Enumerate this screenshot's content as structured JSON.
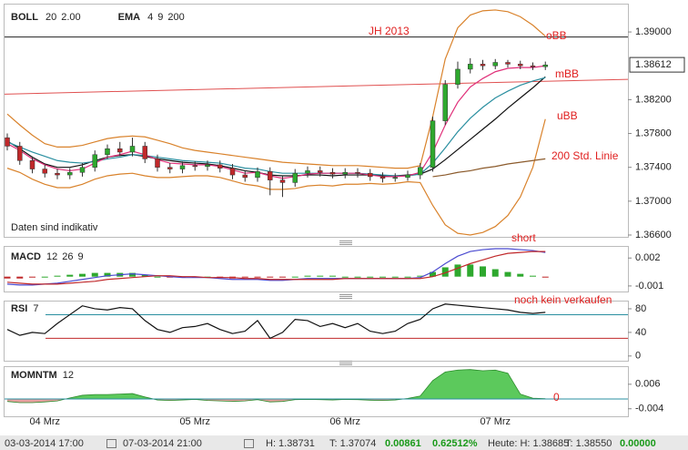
{
  "chart_data": [
    {
      "type": "candlestick",
      "indicators": [
        {
          "name": "BOLL",
          "params": [
            "20",
            "2.00"
          ],
          "param_colors": [
            "#d9822b",
            "#d9822b"
          ]
        },
        {
          "name": "EMA",
          "params": [
            "4",
            "9",
            "200"
          ],
          "param_colors": [
            "#e0307a",
            "#2a8fa0",
            "#8b5a2b"
          ]
        }
      ],
      "categories": [
        null,
        null,
        null,
        "04 Mrz",
        null,
        null,
        null,
        null,
        null,
        null,
        null,
        null,
        null,
        null,
        null,
        "05 Mrz",
        null,
        null,
        null,
        null,
        null,
        null,
        null,
        null,
        null,
        null,
        null,
        "06 Mrz",
        null,
        null,
        null,
        null,
        null,
        null,
        null,
        null,
        null,
        null,
        null,
        "07 Mrz",
        null,
        null,
        null,
        null
      ],
      "open": [
        1.3775,
        1.3765,
        1.3748,
        1.3738,
        1.3733,
        1.3731,
        1.3734,
        1.374,
        1.3755,
        1.3762,
        1.3758,
        1.3765,
        1.375,
        1.374,
        1.3738,
        1.3742,
        1.3741,
        1.3743,
        1.3739,
        1.3731,
        1.3728,
        1.3735,
        1.3725,
        1.3722,
        1.3733,
        1.3736,
        1.3734,
        1.3732,
        1.3734,
        1.3733,
        1.3729,
        1.3727,
        1.3728,
        1.3731,
        1.374,
        1.3795,
        1.3838,
        1.3856,
        1.3862,
        1.386,
        1.3864,
        1.3862,
        1.386,
        1.3859
      ],
      "high": [
        1.378,
        1.377,
        1.3753,
        1.3743,
        1.3738,
        1.3739,
        1.3745,
        1.376,
        1.3767,
        1.377,
        1.3775,
        1.377,
        1.3755,
        1.3745,
        1.3747,
        1.3747,
        1.3748,
        1.3748,
        1.3744,
        1.3736,
        1.374,
        1.374,
        1.373,
        1.3738,
        1.3741,
        1.3741,
        1.3739,
        1.3739,
        1.3739,
        1.3738,
        1.3734,
        1.3733,
        1.3736,
        1.3745,
        1.38,
        1.3843,
        1.3865,
        1.3869,
        1.3867,
        1.3868,
        1.3867,
        1.3866,
        1.3864,
        1.3865
      ],
      "low": [
        1.376,
        1.3743,
        1.3733,
        1.3728,
        1.3726,
        1.3726,
        1.3729,
        1.3735,
        1.375,
        1.3753,
        1.3753,
        1.3745,
        1.3735,
        1.3733,
        1.3733,
        1.3736,
        1.3736,
        1.3734,
        1.3726,
        1.3723,
        1.3723,
        1.3707,
        1.3705,
        1.3717,
        1.3728,
        1.3729,
        1.3727,
        1.3727,
        1.3728,
        1.3724,
        1.3722,
        1.3723,
        1.3724,
        1.3726,
        1.3735,
        1.379,
        1.3833,
        1.3851,
        1.3855,
        1.3856,
        1.3858,
        1.3856,
        1.3855,
        1.3855
      ],
      "close": [
        1.3765,
        1.3748,
        1.3738,
        1.3733,
        1.3731,
        1.3734,
        1.374,
        1.3755,
        1.3762,
        1.3758,
        1.3765,
        1.375,
        1.374,
        1.3738,
        1.3742,
        1.3741,
        1.3743,
        1.3739,
        1.3731,
        1.3728,
        1.3735,
        1.3725,
        1.3722,
        1.3733,
        1.3736,
        1.3734,
        1.3732,
        1.3734,
        1.3733,
        1.3729,
        1.3727,
        1.3728,
        1.3731,
        1.374,
        1.3795,
        1.3838,
        1.3856,
        1.3862,
        1.386,
        1.3864,
        1.3862,
        1.386,
        1.3859,
        1.3861
      ],
      "up_color": "#2ea82e",
      "down_color": "#c0282a",
      "series": [
        {
          "color": "#d9822b",
          "values": [
            1.3803,
            1.379,
            1.3778,
            1.3768,
            1.3764,
            1.3764,
            1.3766,
            1.377,
            1.3774,
            1.3776,
            1.3777,
            1.3776,
            1.3772,
            1.3768,
            1.3763,
            1.376,
            1.3758,
            1.3756,
            1.3754,
            1.3752,
            1.375,
            1.3748,
            1.3746,
            1.3745,
            1.3744,
            1.3743,
            1.3742,
            1.3742,
            1.3742,
            1.3741,
            1.374,
            1.3739,
            1.3739,
            1.3742,
            1.38,
            1.3868,
            1.3905,
            1.392,
            1.3925,
            1.3926,
            1.3924,
            1.3918,
            1.3908,
            1.3895
          ]
        },
        {
          "color": "#d9822b",
          "values": [
            1.3739,
            1.3734,
            1.3726,
            1.372,
            1.3716,
            1.3716,
            1.372,
            1.3726,
            1.373,
            1.3732,
            1.3733,
            1.373,
            1.3728,
            1.3728,
            1.3729,
            1.373,
            1.373,
            1.3728,
            1.3724,
            1.372,
            1.3718,
            1.3714,
            1.3714,
            1.3715,
            1.3718,
            1.3719,
            1.3718,
            1.372,
            1.372,
            1.3721,
            1.372,
            1.3721,
            1.3723,
            1.3722,
            1.3695,
            1.3672,
            1.3662,
            1.366,
            1.3663,
            1.367,
            1.3683,
            1.3705,
            1.374,
            1.3797
          ]
        },
        {
          "color": "#111111",
          "values": [
            1.3771,
            1.3762,
            1.3752,
            1.3744,
            1.374,
            1.374,
            1.3743,
            1.3748,
            1.3752,
            1.3754,
            1.3755,
            1.3753,
            1.375,
            1.3748,
            1.3746,
            1.3745,
            1.3744,
            1.3742,
            1.3739,
            1.3736,
            1.3734,
            1.3731,
            1.373,
            1.373,
            1.3731,
            1.3731,
            1.373,
            1.3731,
            1.3731,
            1.3731,
            1.373,
            1.373,
            1.3731,
            1.3732,
            1.3738,
            1.3749,
            1.3761,
            1.3773,
            1.3785,
            1.3797,
            1.381,
            1.3822,
            1.3834,
            1.3847
          ]
        },
        {
          "color": "#2a8fa0",
          "values": [
            1.377,
            1.3764,
            1.3758,
            1.3753,
            1.3748,
            1.3746,
            1.3745,
            1.3747,
            1.375,
            1.3752,
            1.3755,
            1.3754,
            1.3752,
            1.375,
            1.3748,
            1.3747,
            1.3746,
            1.3745,
            1.3742,
            1.3739,
            1.3738,
            1.3735,
            1.3733,
            1.3733,
            1.3733,
            1.3733,
            1.3733,
            1.3733,
            1.3733,
            1.3732,
            1.3731,
            1.373,
            1.373,
            1.3732,
            1.3745,
            1.3763,
            1.3782,
            1.3798,
            1.3811,
            1.3822,
            1.383,
            1.3837,
            1.3842,
            1.3846
          ]
        },
        {
          "color": "#e0307a",
          "values": [
            1.3768,
            1.376,
            1.375,
            1.3743,
            1.3738,
            1.3736,
            1.3738,
            1.3745,
            1.3752,
            1.3755,
            1.3759,
            1.3755,
            1.3749,
            1.3745,
            1.3744,
            1.3743,
            1.3743,
            1.3741,
            1.3737,
            1.3733,
            1.3734,
            1.373,
            1.3727,
            1.3729,
            1.3732,
            1.3733,
            1.3733,
            1.3733,
            1.3733,
            1.3731,
            1.3729,
            1.3729,
            1.373,
            1.3734,
            1.3758,
            1.379,
            1.3817,
            1.3835,
            1.3845,
            1.3853,
            1.3857,
            1.3858,
            1.3858,
            1.386
          ]
        },
        {
          "color": "#8b5a2b",
          "values": [
            null,
            null,
            null,
            null,
            null,
            null,
            null,
            null,
            null,
            null,
            null,
            null,
            null,
            null,
            null,
            null,
            null,
            null,
            null,
            null,
            null,
            null,
            null,
            null,
            null,
            null,
            null,
            null,
            null,
            null,
            null,
            null,
            null,
            null,
            1.3729,
            1.3731,
            1.3734,
            1.3736,
            1.3739,
            1.3741,
            1.3744,
            1.3746,
            1.3748,
            1.375
          ]
        }
      ],
      "hline": 1.3894,
      "hline_color": "#222222",
      "trendline": [
        1.38265,
        1.3844
      ],
      "trendline_color": "#e05050",
      "ylim": [
        1.366,
        1.3927
      ],
      "yticks": [
        {
          "value": 1.39,
          "label": "1.39000"
        },
        {
          "value": 1.382,
          "label": "1.38200"
        },
        {
          "value": 1.378,
          "label": "1.37800"
        },
        {
          "value": 1.374,
          "label": "1.37400"
        },
        {
          "value": 1.37,
          "label": "1.37000"
        },
        {
          "value": 1.366,
          "label": "1.36600"
        }
      ],
      "last_price": {
        "value": 1.38612,
        "label": "1.38612"
      },
      "annotations": [
        "JH 2013",
        "oBB",
        "mBB",
        "uBB",
        "200 Std. Linie"
      ],
      "note": "Daten sind indikativ"
    },
    {
      "type": "macd",
      "title": "MACD",
      "params": [
        "12",
        "26",
        "9"
      ],
      "param_colors": [
        "#c0282a",
        "#c0282a",
        "#c0282a"
      ],
      "values": [
        -0.0002,
        -0.0002,
        -0.0001,
        0,
        0.0001,
        0.0002,
        0.0003,
        0.0004,
        0.0004,
        0.0004,
        0.0004,
        0.0002,
        0,
        -0.0001,
        -0.0001,
        -0.0001,
        0,
        -0.0001,
        -0.0002,
        -0.0001,
        -0.0001,
        -0.0001,
        -0.0001,
        0,
        0.0001,
        0.0001,
        0.0001,
        0,
        0,
        0,
        0,
        0,
        0,
        0.0001,
        0.0005,
        0.001,
        0.0013,
        0.0013,
        0.0011,
        0.0008,
        0.0005,
        0.0003,
        0.0001,
        -0.0001
      ],
      "up_color": "#2ea82e",
      "down_color": "#c0282a",
      "series": [
        {
          "color": "#4a4ad0",
          "values": [
            -0.0008,
            -0.0009,
            -0.0009,
            -0.0008,
            -0.0007,
            -0.0005,
            -0.0003,
            -0.0001,
            0.0001,
            0.0002,
            0.0003,
            0.0002,
            0.0001,
            0,
            -0.0001,
            -0.0001,
            -0.0001,
            -0.0002,
            -0.0003,
            -0.0003,
            -0.0003,
            -0.0004,
            -0.0004,
            -0.0003,
            -0.0002,
            -0.0002,
            -0.0002,
            -0.0002,
            -0.0002,
            -0.0002,
            -0.0002,
            -0.0002,
            -0.0002,
            -0.0001,
            0.0005,
            0.0014,
            0.0022,
            0.0027,
            0.0029,
            0.003,
            0.003,
            0.0029,
            0.0028,
            0.0026
          ]
        },
        {
          "color": "#c0282a",
          "values": [
            -0.0006,
            -0.0007,
            -0.0008,
            -0.0008,
            -0.0008,
            -0.0007,
            -0.0006,
            -0.0005,
            -0.0003,
            -0.0002,
            -0.0001,
            0,
            0.0001,
            0.0001,
            0,
            0,
            -0.0001,
            -0.0001,
            -0.0001,
            -0.0002,
            -0.0002,
            -0.0003,
            -0.0003,
            -0.0003,
            -0.0003,
            -0.0003,
            -0.0003,
            -0.0002,
            -0.0002,
            -0.0002,
            -0.0002,
            -0.0002,
            -0.0002,
            -0.0002,
            0,
            0.0004,
            0.0009,
            0.0014,
            0.0018,
            0.0022,
            0.0025,
            0.0026,
            0.0027,
            0.0027
          ]
        }
      ],
      "ylim": [
        -0.0014,
        0.0031
      ],
      "yticks": [
        0.002,
        -0.001
      ],
      "annotations": [
        "short"
      ]
    },
    {
      "type": "line",
      "title": "RSI",
      "params": [
        "7"
      ],
      "param_colors": [
        "#222222"
      ],
      "values": [
        45,
        35,
        40,
        38,
        55,
        70,
        85,
        80,
        78,
        82,
        80,
        60,
        45,
        40,
        48,
        50,
        55,
        45,
        38,
        42,
        60,
        30,
        40,
        62,
        60,
        50,
        55,
        48,
        55,
        42,
        38,
        42,
        55,
        62,
        80,
        88,
        86,
        84,
        82,
        80,
        78,
        74,
        72,
        74
      ],
      "color": "#111111",
      "levels": [
        70,
        30
      ],
      "level_colors": [
        "#2a8fa0",
        "#c0282a"
      ],
      "ylim": [
        -8,
        100
      ],
      "yticks": [
        80,
        40,
        0
      ],
      "annotations": [
        "noch kein verkaufen"
      ]
    },
    {
      "type": "area",
      "title": "MOMNTM",
      "params": [
        "12"
      ],
      "param_colors": [
        "#222222"
      ],
      "values": [
        -0.001,
        -0.0015,
        -0.0015,
        -0.0012,
        -0.0008,
        0.0004,
        0.0015,
        0.0018,
        0.0018,
        0.002,
        0.0022,
        0.0008,
        -0.0004,
        -0.0006,
        -0.0004,
        -0.0002,
        -0.0006,
        -0.0008,
        -0.001,
        -0.0008,
        -0.0003,
        -0.0012,
        -0.001,
        -0.0003,
        -0.0002,
        -0.0003,
        -0.0004,
        -0.0002,
        -0.0003,
        -0.0005,
        -0.0006,
        -0.0004,
        0.0002,
        0.0012,
        0.0075,
        0.011,
        0.0118,
        0.012,
        0.0115,
        0.0118,
        0.0105,
        0.002,
        0.0003,
        0.0001
      ],
      "up_color": "#5cc95c",
      "down_color": "#e8a0a0",
      "line_color": "#2a8a2a",
      "zero_color": "#2a8fa0",
      "ylim": [
        -0.0067,
        0.013
      ],
      "yticks": [
        0.006,
        -0.004
      ],
      "annotations": [
        "0"
      ]
    }
  ],
  "footer": {
    "from": "03-03-2014 17:00",
    "to": "07-03-2014 21:00",
    "high": "H: 1.38731",
    "low": "T: 1.37074",
    "change": "0.00861",
    "change_pct": "0.62512%",
    "today_high": "Heute: H: 1.38685",
    "today_low": "T: 1.38550",
    "today_change": "0.00000"
  }
}
